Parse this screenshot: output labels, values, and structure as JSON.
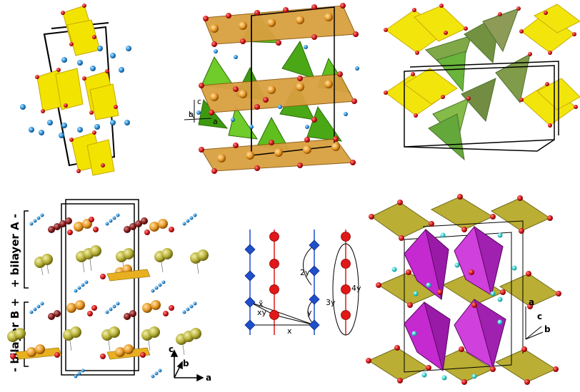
{
  "panel_b": {
    "axes": {
      "c": "c",
      "b": "b",
      "a": "a"
    }
  },
  "panel_d": {
    "bilayer_a": "+ bilayer A -",
    "bilayer_b": "- bilayer B +",
    "axes": {
      "c": "c",
      "b": "b",
      "a": "a"
    }
  },
  "panel_e": {
    "labels": {
      "x_tilde": "x̃",
      "xy": "xy",
      "x": "x",
      "y": "y",
      "two_y": "2y",
      "three_y": "3y",
      "four_y": "4y"
    }
  },
  "panel_f": {
    "axes": {
      "a": "a",
      "c": "c",
      "b": "b"
    }
  },
  "colors": {
    "yellow_octahedra": "#f2e400",
    "orange_atom": "#e89a2a",
    "red_atom": "#d21a1a",
    "blue_atom": "#2a8fd8",
    "green_tetra": "#5fbf1e",
    "olive_sphere": "#b8b23a",
    "magenta_octa": "#c42ad0",
    "olive_plate": "#b7aa2a",
    "cyan_atom": "#35d2d0",
    "diagram_blue": "#1f4fc9",
    "diagram_red": "#e01818"
  }
}
